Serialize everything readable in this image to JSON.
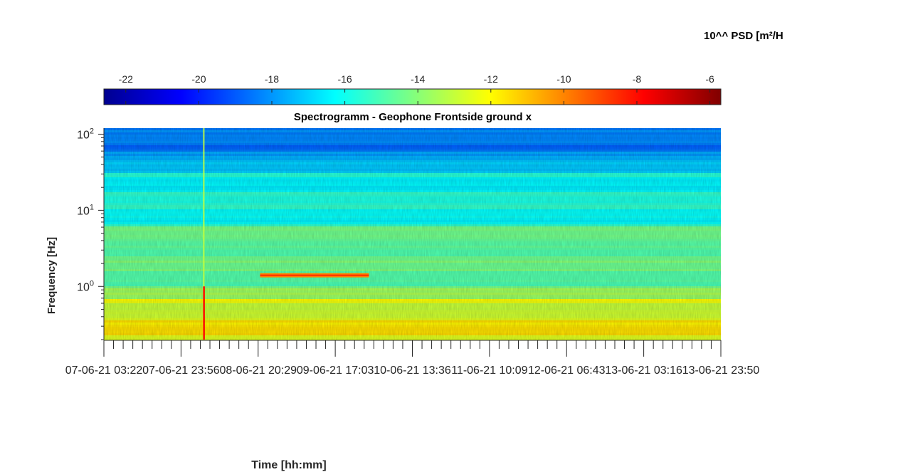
{
  "chart_data": {
    "type": "heatmap",
    "title": "Spectrogramm - Geophone Frontside ground x",
    "xlabel": "Time [hh:mm]",
    "ylabel": "Frequency [Hz]",
    "colorbar_label": "10^^ PSD [m²/H",
    "colorbar": {
      "ticks": [
        -22,
        -20,
        -18,
        -16,
        -14,
        -12,
        -10,
        -8,
        -6
      ],
      "range": [
        -22.6,
        -5.7
      ],
      "colormap": "jet",
      "position": "top"
    },
    "x_ticks": [
      "07-06-21 03:22",
      "07-06-21 23:56",
      "08-06-21 20:29",
      "09-06-21 17:03",
      "10-06-21 13:36",
      "11-06-21 10:09",
      "12-06-21 06:43",
      "13-06-21 03:16",
      "13-06-21 23:50"
    ],
    "y_scale": "log",
    "y_ticks": [
      {
        "base": "10",
        "exp": "2",
        "value": 100
      },
      {
        "base": "10",
        "exp": "1",
        "value": 10
      },
      {
        "base": "10",
        "exp": "0",
        "value": 1
      }
    ],
    "ylim": [
      0.2,
      120
    ],
    "approx_levels": {
      "above_30Hz": -17.5,
      "6Hz_to_30Hz": -16.0,
      "1Hz_to_6Hz": -14.5,
      "below_0.7Hz": -12.5
    },
    "features": [
      {
        "kind": "vertical_spike",
        "time": "08-06-21 06:00",
        "level": -8
      },
      {
        "kind": "horizontal_band",
        "time_start": "08-06-21 21:00",
        "time_end": "10-06-21 02:00",
        "frequency": 1.4,
        "level": -10
      }
    ]
  }
}
